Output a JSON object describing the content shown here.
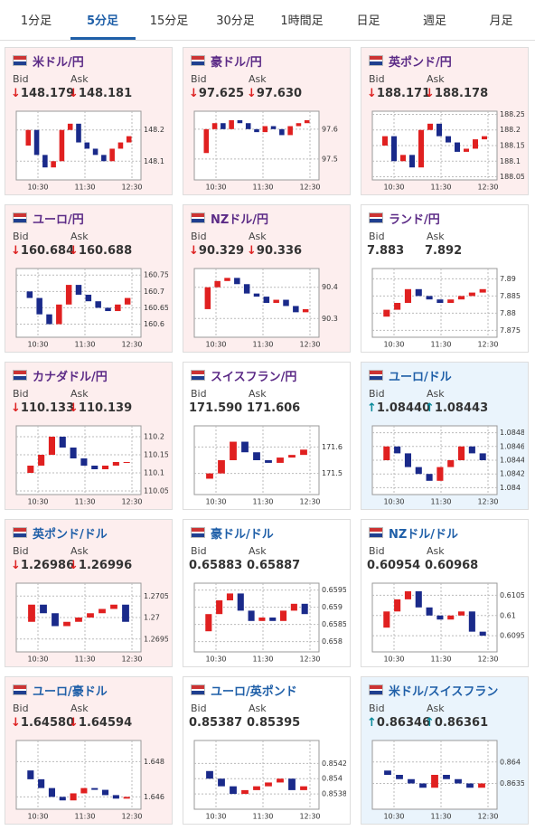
{
  "tabs": [
    "1分足",
    "5分足",
    "15分足",
    "30分足",
    "1時間足",
    "日足",
    "週足",
    "月足"
  ],
  "active_tab": 1,
  "bid_label": "Bid",
  "ask_label": "Ask",
  "panels": [
    {
      "title": "米ドル/円",
      "title_color": "#5b2a86",
      "background": "#fdeeee",
      "bid_arrow": "↓",
      "bid": "148.179",
      "ask_arrow": "↓",
      "ask": "148.181",
      "xticks": [
        "10:30",
        "11:30",
        "12:30"
      ],
      "ylim": [
        148.04,
        148.26
      ],
      "yticks": [
        148.1,
        148.2
      ],
      "values": [
        148.15,
        148.2,
        148.12,
        148.08,
        148.1,
        148.2,
        148.22,
        148.16,
        148.14,
        148.12,
        148.1,
        148.14,
        148.16,
        148.18
      ]
    },
    {
      "title": "豪ドル/円",
      "title_color": "#5b2a86",
      "background": "#fdeeee",
      "bid_arrow": "↓",
      "bid": "97.625",
      "ask_arrow": "↓",
      "ask": "97.630",
      "xticks": [
        "10:30",
        "11:30",
        "12:30"
      ],
      "ylim": [
        97.43,
        97.66
      ],
      "yticks": [
        97.5,
        97.6
      ],
      "values": [
        97.52,
        97.6,
        97.62,
        97.6,
        97.63,
        97.62,
        97.6,
        97.59,
        97.61,
        97.6,
        97.58,
        97.61,
        97.62,
        97.63
      ]
    },
    {
      "title": "英ポンド/円",
      "title_color": "#5b2a86",
      "background": "#fdeeee",
      "bid_arrow": "↓",
      "bid": "188.171",
      "ask_arrow": "↓",
      "ask": "188.178",
      "xticks": [
        "10:30",
        "11:30",
        "12:30"
      ],
      "ylim": [
        188.04,
        188.26
      ],
      "yticks": [
        188.05,
        188.1,
        188.15,
        188.2,
        188.25
      ],
      "values": [
        188.15,
        188.18,
        188.1,
        188.12,
        188.08,
        188.2,
        188.22,
        188.18,
        188.16,
        188.13,
        188.14,
        188.17,
        188.18
      ]
    },
    {
      "title": "ユーロ/円",
      "title_color": "#5b2a86",
      "background": "#fdeeee",
      "bid_arrow": "↓",
      "bid": "160.684",
      "ask_arrow": "↓",
      "ask": "160.688",
      "xticks": [
        "10:30",
        "11:30",
        "12:30"
      ],
      "ylim": [
        160.56,
        160.77
      ],
      "yticks": [
        160.6,
        160.65,
        160.7,
        160.75
      ],
      "values": [
        160.7,
        160.68,
        160.63,
        160.6,
        160.66,
        160.72,
        160.69,
        160.67,
        160.65,
        160.64,
        160.66,
        160.68
      ]
    },
    {
      "title": "NZドル/円",
      "title_color": "#5b2a86",
      "background": "#fdeeee",
      "bid_arrow": "↓",
      "bid": "90.329",
      "ask_arrow": "↓",
      "ask": "90.336",
      "xticks": [
        "10:30",
        "11:30",
        "12:30"
      ],
      "ylim": [
        90.24,
        90.46
      ],
      "yticks": [
        90.3,
        90.4
      ],
      "values": [
        90.33,
        90.4,
        90.42,
        90.43,
        90.41,
        90.38,
        90.37,
        90.35,
        90.36,
        90.34,
        90.32,
        90.33
      ]
    },
    {
      "title": "ランド/円",
      "title_color": "#5b2a86",
      "background": "#ffffff",
      "bid_arrow": "",
      "bid": "7.883",
      "ask_arrow": "",
      "ask": "7.892",
      "xticks": [
        "10:30",
        "11:30",
        "12:30"
      ],
      "ylim": [
        7.873,
        7.893
      ],
      "yticks": [
        7.875,
        7.88,
        7.885,
        7.89
      ],
      "values": [
        7.879,
        7.881,
        7.883,
        7.887,
        7.885,
        7.884,
        7.883,
        7.884,
        7.885,
        7.886,
        7.887
      ]
    },
    {
      "title": "カナダドル/円",
      "title_color": "#5b2a86",
      "background": "#fdeeee",
      "bid_arrow": "↓",
      "bid": "110.133",
      "ask_arrow": "↓",
      "ask": "110.139",
      "xticks": [
        "10:30",
        "11:30",
        "12:30"
      ],
      "ylim": [
        110.04,
        110.23
      ],
      "yticks": [
        110.05,
        110.1,
        110.15,
        110.2
      ],
      "values": [
        110.1,
        110.12,
        110.15,
        110.2,
        110.17,
        110.14,
        110.12,
        110.11,
        110.12,
        110.13,
        110.13
      ]
    },
    {
      "title": "スイスフラン/円",
      "title_color": "#5b2a86",
      "background": "#ffffff",
      "bid_arrow": "",
      "bid": "171.590",
      "ask_arrow": "",
      "ask": "171.606",
      "xticks": [
        "10:30",
        "11:30",
        "12:30"
      ],
      "ylim": [
        171.42,
        171.68
      ],
      "yticks": [
        171.5,
        171.6
      ],
      "values": [
        171.48,
        171.5,
        171.55,
        171.62,
        171.58,
        171.55,
        171.54,
        171.56,
        171.57,
        171.59
      ]
    },
    {
      "title": "ユーロ/ドル",
      "title_color": "#1f5fa8",
      "background": "#eaf4fc",
      "bid_arrow": "↑",
      "bid": "1.08440",
      "ask_arrow": "↑",
      "ask": "1.08443",
      "xticks": [
        "10:30",
        "11:30",
        "12:30"
      ],
      "ylim": [
        1.0839,
        1.0849
      ],
      "yticks": [
        1.084,
        1.0842,
        1.0844,
        1.0846,
        1.0848
      ],
      "values": [
        1.0844,
        1.0846,
        1.0845,
        1.0843,
        1.0842,
        1.0841,
        1.0843,
        1.0844,
        1.0846,
        1.0845,
        1.0844
      ]
    },
    {
      "title": "英ポンド/ドル",
      "title_color": "#1f5fa8",
      "background": "#fdeeee",
      "bid_arrow": "↓",
      "bid": "1.26986",
      "ask_arrow": "↓",
      "ask": "1.26996",
      "xticks": [
        "10:30",
        "11:30",
        "12:30"
      ],
      "ylim": [
        1.2692,
        1.2708
      ],
      "yticks": [
        1.2695,
        1.27,
        1.2705
      ],
      "values": [
        1.2699,
        1.2703,
        1.2701,
        1.2698,
        1.2699,
        1.27,
        1.2701,
        1.2702,
        1.2703,
        1.2699
      ]
    },
    {
      "title": "豪ドル/ドル",
      "title_color": "#1f5fa8",
      "background": "#ffffff",
      "bid_arrow": "",
      "bid": "0.65883",
      "ask_arrow": "",
      "ask": "0.65887",
      "xticks": [
        "10:30",
        "11:30",
        "12:30"
      ],
      "ylim": [
        0.6577,
        0.6597
      ],
      "yticks": [
        0.658,
        0.6585,
        0.659,
        0.6595
      ],
      "values": [
        0.6583,
        0.6588,
        0.6592,
        0.6594,
        0.6589,
        0.6586,
        0.6587,
        0.6586,
        0.6589,
        0.6591,
        0.6588
      ]
    },
    {
      "title": "NZドル/ドル",
      "title_color": "#1f5fa8",
      "background": "#ffffff",
      "bid_arrow": "",
      "bid": "0.60954",
      "ask_arrow": "",
      "ask": "0.60968",
      "xticks": [
        "10:30",
        "11:30",
        "12:30"
      ],
      "ylim": [
        0.6091,
        0.6108
      ],
      "yticks": [
        0.6095,
        0.61,
        0.6105
      ],
      "values": [
        0.6097,
        0.6101,
        0.6104,
        0.6106,
        0.6102,
        0.61,
        0.6099,
        0.61,
        0.6101,
        0.6096,
        0.6095
      ]
    },
    {
      "title": "ユーロ/豪ドル",
      "title_color": "#1f5fa8",
      "background": "#fdeeee",
      "bid_arrow": "↓",
      "bid": "1.64580",
      "ask_arrow": "↓",
      "ask": "1.64594",
      "xticks": [
        "10:30",
        "11:30",
        "12:30"
      ],
      "ylim": [
        1.6453,
        1.6492
      ],
      "yticks": [
        1.646,
        1.648
      ],
      "values": [
        1.6475,
        1.647,
        1.6465,
        1.646,
        1.6458,
        1.6462,
        1.6465,
        1.6464,
        1.6461,
        1.6459,
        1.646
      ]
    },
    {
      "title": "ユーロ/英ポンド",
      "title_color": "#1f5fa8",
      "background": "#ffffff",
      "bid_arrow": "",
      "bid": "0.85387",
      "ask_arrow": "",
      "ask": "0.85395",
      "xticks": [
        "10:30",
        "11:30",
        "12:30"
      ],
      "ylim": [
        0.8536,
        0.8545
      ],
      "yticks": [
        0.8538,
        0.854,
        0.8542
      ],
      "values": [
        0.8541,
        0.854,
        0.8539,
        0.8538,
        0.85385,
        0.8539,
        0.85395,
        0.854,
        0.85385,
        0.8539
      ]
    },
    {
      "title": "米ドル/スイスフラン",
      "title_color": "#1f5fa8",
      "background": "#eaf4fc",
      "bid_arrow": "↑",
      "bid": "0.86346",
      "ask_arrow": "↑",
      "ask": "0.86361",
      "xticks": [
        "10:30",
        "11:30",
        "12:30"
      ],
      "ylim": [
        0.8629,
        0.8645
      ],
      "yticks": [
        0.8635,
        0.864
      ],
      "values": [
        0.8638,
        0.8637,
        0.8636,
        0.8635,
        0.8634,
        0.8637,
        0.8636,
        0.8635,
        0.8634,
        0.8635
      ]
    }
  ]
}
